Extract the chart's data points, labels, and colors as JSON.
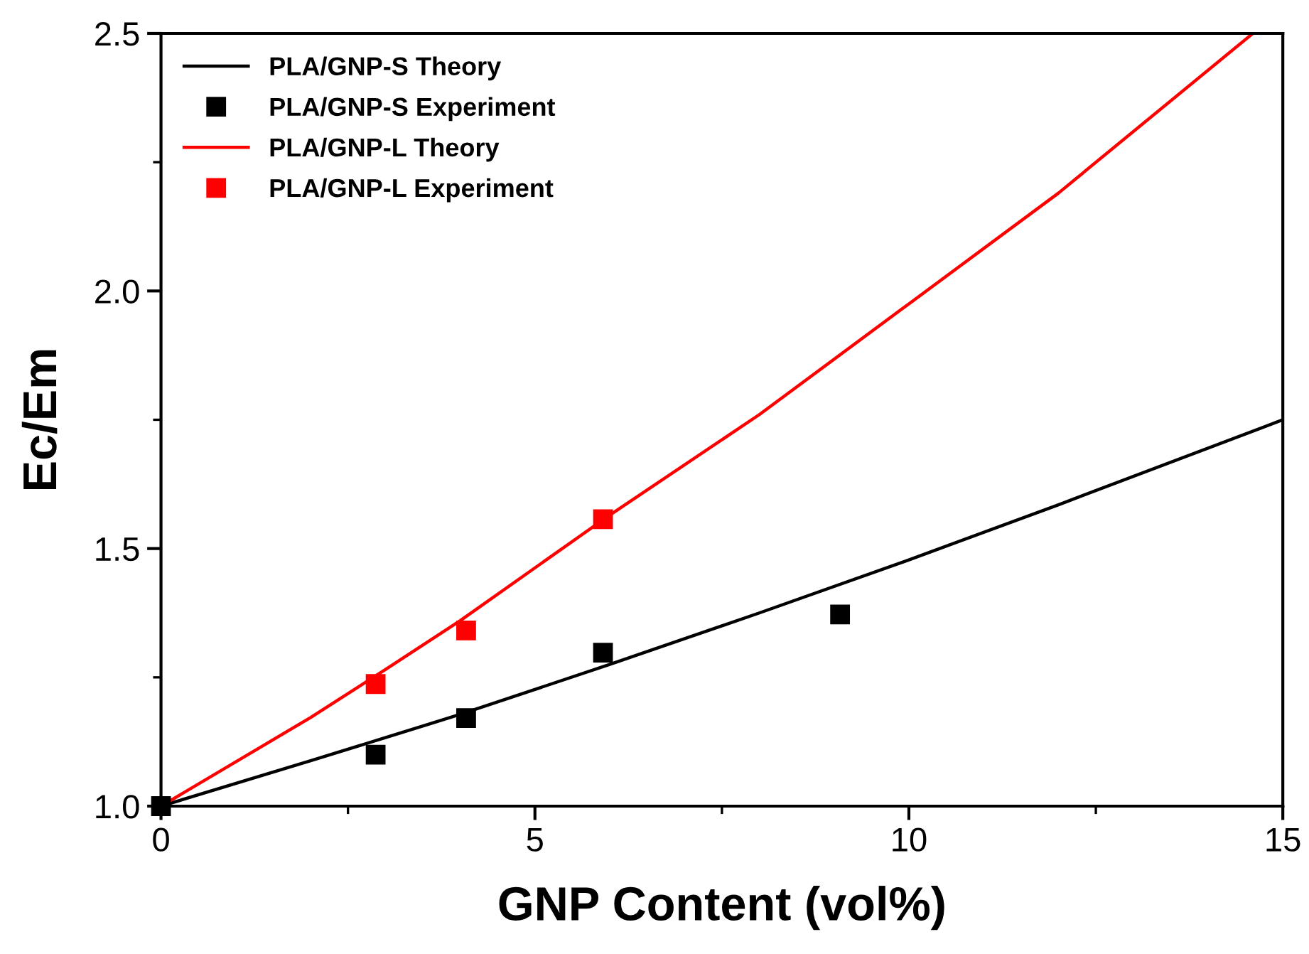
{
  "chart_data": {
    "type": "scatter",
    "xlabel": "GNP Content (vol%)",
    "ylabel": "Ec/Em",
    "xlim": [
      0,
      15
    ],
    "ylim": [
      1.0,
      2.5
    ],
    "xticks": [
      0,
      5,
      10,
      15
    ],
    "yticks": [
      {
        "value": 1.0,
        "label": "1.0"
      },
      {
        "value": 1.5,
        "label": "1.5"
      },
      {
        "value": 2.0,
        "label": "2.0"
      },
      {
        "value": 2.5,
        "label": "2.5"
      }
    ],
    "grid": false,
    "legend": "top left",
    "marker": "square",
    "series": [
      {
        "name": "PLA/GNP-S Theory",
        "type": "line",
        "color": "#000000",
        "marker": "none",
        "x": [
          0,
          2,
          3,
          4,
          6,
          8,
          10,
          12,
          15
        ],
        "values": [
          1.0,
          1.088,
          1.133,
          1.178,
          1.275,
          1.375,
          1.478,
          1.585,
          1.75
        ]
      },
      {
        "name": "PLA/GNP-S Experiment",
        "color": "#000000",
        "x": [
          0,
          2.87,
          4.08,
          5.91,
          9.08
        ],
        "values": [
          1.0,
          1.1,
          1.171,
          1.298,
          1.372
        ]
      },
      {
        "name": "PLA/GNP-L Theory",
        "type": "line",
        "color": "#ff0000",
        "marker": "none",
        "x": [
          0,
          2,
          3,
          4,
          6,
          8,
          10,
          12,
          14.6
        ],
        "values": [
          1.0,
          1.172,
          1.265,
          1.36,
          1.565,
          1.76,
          1.975,
          2.19,
          2.5
        ]
      },
      {
        "name": "PLA/GNP-L Experiment",
        "color": "#ff0000",
        "x": [
          2.87,
          4.08,
          5.91
        ],
        "values": [
          1.237,
          1.341,
          1.557
        ]
      }
    ]
  }
}
